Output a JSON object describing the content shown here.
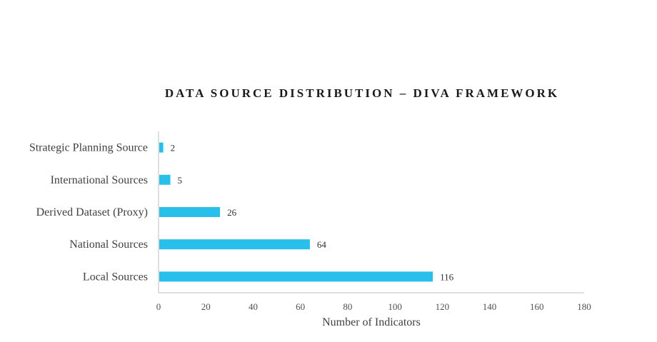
{
  "chart_data": {
    "type": "bar",
    "orientation": "horizontal",
    "title": "DATA SOURCE DISTRIBUTION – DIVA FRAMEWORK",
    "xlabel": "Number of Indicators",
    "ylabel": "",
    "categories": [
      "Strategic Planning Source",
      "International Sources",
      "Derived Dataset (Proxy)",
      "National Sources",
      "Local Sources"
    ],
    "values": [
      2,
      5,
      26,
      64,
      116
    ],
    "xlim": [
      0,
      180
    ],
    "xticks": [
      "0",
      "20",
      "40",
      "60",
      "80",
      "100",
      "120",
      "140",
      "160",
      "180"
    ],
    "data_labels": [
      "2",
      "5",
      "26",
      "64",
      "116"
    ],
    "bar_color": "#29bfeb",
    "grid": false,
    "legend": "none"
  }
}
